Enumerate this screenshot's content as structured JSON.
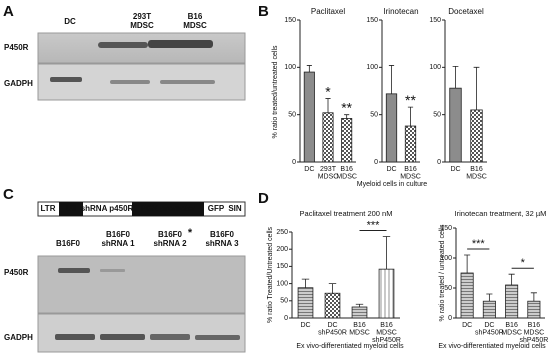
{
  "panel_letters": [
    "A",
    "B",
    "C",
    "D"
  ],
  "blot_a": {
    "lanes": [
      [
        "DC"
      ],
      [
        "293T",
        "MDSC"
      ],
      [
        "B16",
        "MDSC"
      ]
    ],
    "rows": [
      "P450R",
      "GADPH"
    ]
  },
  "construct": [
    "LTR",
    "U6",
    "shRNA p450R",
    "PGK promoter",
    "GFP",
    "SIN"
  ],
  "blot_c": {
    "lanes": [
      [
        "B16F0"
      ],
      [
        "B16F0",
        "shRNA 1"
      ],
      [
        "B16F0",
        "shRNA 2"
      ],
      [
        "B16F0",
        "shRNA 3"
      ]
    ],
    "marker": "*",
    "rows": [
      "P450R",
      "GADPH"
    ]
  },
  "panel_b": {
    "ylabel": "% ratio treated/untreated cells",
    "xlabel": "Myeloid cells in culture"
  },
  "chart_data": [
    {
      "type": "bar",
      "title": "Paclitaxel",
      "categories": [
        [
          "DC"
        ],
        [
          "293T",
          "MDSC"
        ],
        [
          "B16",
          "MDSC"
        ]
      ],
      "values": [
        95,
        52,
        46
      ],
      "errors": [
        7,
        15,
        4
      ],
      "patterns": [
        "solid",
        "checker",
        "checker"
      ],
      "ylim": [
        0,
        150
      ],
      "yticks": [
        0,
        50,
        100,
        150
      ],
      "annotations": [
        {
          "text": "*",
          "category": 1
        },
        {
          "text": "**",
          "category": 2
        }
      ]
    },
    {
      "type": "bar",
      "title": "Irinotecan",
      "categories": [
        [
          "DC"
        ],
        [
          "B16",
          "MDSC"
        ]
      ],
      "values": [
        72,
        38
      ],
      "errors": [
        30,
        20
      ],
      "patterns": [
        "solid",
        "checker"
      ],
      "ylim": [
        0,
        150
      ],
      "yticks": [
        0,
        50,
        100,
        150
      ],
      "annotations": [
        {
          "text": "**",
          "category": 1
        }
      ]
    },
    {
      "type": "bar",
      "title": "Docetaxel",
      "categories": [
        [
          "DC"
        ],
        [
          "B16",
          "MDSC"
        ]
      ],
      "values": [
        78,
        55
      ],
      "errors": [
        23,
        45
      ],
      "patterns": [
        "solid",
        "checker"
      ],
      "ylim": [
        0,
        150
      ],
      "yticks": [
        0,
        50,
        100,
        150
      ],
      "annotations": []
    },
    {
      "type": "bar",
      "title": "Paclitaxel treatment 200 nM",
      "ylabel": "% ratio  Treated/Untreated cells",
      "xlabel": "Ex vivo-differentiated myeloid cells",
      "categories": [
        [
          "DC"
        ],
        [
          "DC",
          "shP450R"
        ],
        [
          "B16",
          "MDSC"
        ],
        [
          "B16",
          "MDSC",
          "shP450R"
        ]
      ],
      "values": [
        88,
        72,
        32,
        142
      ],
      "errors": [
        25,
        28,
        8,
        95
      ],
      "patterns": [
        "hlines",
        "checker",
        "hlines",
        "vlines"
      ],
      "ylim": [
        0,
        250
      ],
      "yticks": [
        0,
        50,
        100,
        150,
        200,
        250
      ],
      "annotations": [
        {
          "text": "***",
          "span": [
            2,
            3
          ]
        }
      ]
    },
    {
      "type": "bar",
      "title": "Irinotecan treatment, 32 µM",
      "ylabel": "% ratio treated / untreated cells",
      "xlabel": "Ex vivo-differentiated myeloid cells",
      "categories": [
        [
          "DC"
        ],
        [
          "DC",
          "shP450R"
        ],
        [
          "B16",
          "MDSC"
        ],
        [
          "B16",
          "MDSC",
          "shP450R"
        ]
      ],
      "values": [
        75,
        28,
        55,
        28
      ],
      "errors": [
        30,
        12,
        18,
        14
      ],
      "patterns": [
        "hlines",
        "hlines",
        "hlines",
        "hlines"
      ],
      "ylim": [
        0,
        150
      ],
      "yticks": [
        0,
        50,
        100,
        150
      ],
      "annotations": [
        {
          "text": "***",
          "span": [
            0,
            1
          ]
        },
        {
          "text": "*",
          "span": [
            2,
            3
          ]
        }
      ]
    }
  ]
}
